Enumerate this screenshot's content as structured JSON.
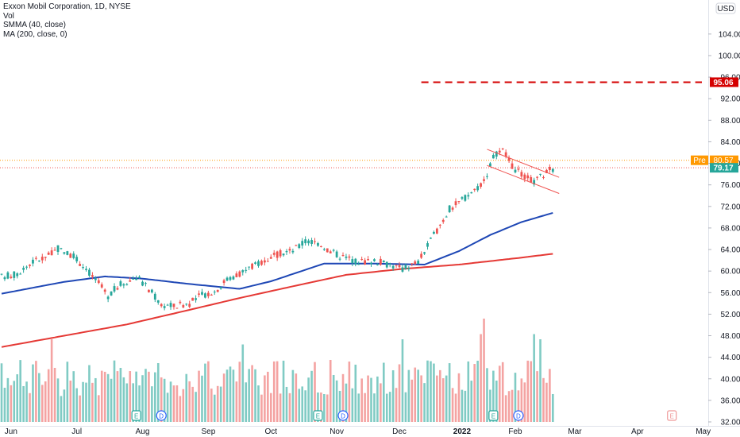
{
  "legend": {
    "title": "Exxon Mobil Corporation, 1D, NYSE",
    "vol": "Vol",
    "smma": "SMMA (40, close)",
    "ma": "MA (200, close, 0)"
  },
  "currency_button": "USD",
  "colors": {
    "up": "#26a69a",
    "down": "#ef5350",
    "vol_up": "#80cbc4",
    "vol_down": "#f4a3a2",
    "smma": "#1e47b5",
    "ma200": "#e53935",
    "target": "#d50000",
    "pre": "#ff9800",
    "event_green": "#26a69a",
    "event_blue": "#2962ff",
    "event_red": "#ef9a9a"
  },
  "chart_data": {
    "type": "candlestick",
    "title": "Exxon Mobil Corporation, 1D, NYSE",
    "yaxis_ticks": [
      "104.00",
      "100.00",
      "96.00",
      "92.00",
      "88.00",
      "84.00",
      "80.00",
      "76.00",
      "72.00",
      "68.00",
      "64.00",
      "60.00",
      "56.00",
      "52.00",
      "48.00",
      "44.00",
      "40.00",
      "36.00",
      "32.00"
    ],
    "xaxis_ticks": [
      "Jun",
      "Jul",
      "Aug",
      "Sep",
      "Oct",
      "Nov",
      "Dec",
      "2022",
      "Feb",
      "Mar",
      "Apr",
      "May"
    ],
    "ylim": [
      32,
      106
    ],
    "price_anchors": [
      [
        0,
        58.9
      ],
      [
        5,
        59.5
      ],
      [
        10,
        61.8
      ],
      [
        14,
        62.6
      ],
      [
        18,
        64.1
      ],
      [
        22,
        63.1
      ],
      [
        26,
        61.1
      ],
      [
        30,
        58.4
      ],
      [
        34,
        55.5
      ],
      [
        38,
        57.6
      ],
      [
        43,
        58.8
      ],
      [
        47,
        56.7
      ],
      [
        51,
        53.8
      ],
      [
        55,
        53.5
      ],
      [
        60,
        54.0
      ],
      [
        64,
        55.6
      ],
      [
        68,
        56.2
      ],
      [
        72,
        58.5
      ],
      [
        78,
        60.2
      ],
      [
        83,
        61.8
      ],
      [
        89,
        63.2
      ],
      [
        93,
        63.8
      ],
      [
        97,
        65.5
      ],
      [
        101,
        65.3
      ],
      [
        105,
        63.6
      ],
      [
        110,
        62.4
      ],
      [
        114,
        61.8
      ],
      [
        119,
        61.9
      ],
      [
        124,
        61.2
      ],
      [
        128,
        60.4
      ],
      [
        133,
        61.7
      ],
      [
        137,
        65.6
      ],
      [
        140,
        68.6
      ],
      [
        143,
        71.5
      ],
      [
        147,
        73.2
      ],
      [
        151,
        75.1
      ],
      [
        154,
        76.8
      ],
      [
        157,
        81.1
      ],
      [
        160,
        82.4
      ],
      [
        163,
        79.4
      ],
      [
        166,
        77.8
      ],
      [
        170,
        76.6
      ],
      [
        173,
        77.9
      ],
      [
        176,
        79.1
      ]
    ],
    "smma_40": [
      [
        0,
        55.8
      ],
      [
        20,
        58.0
      ],
      [
        33,
        59.0
      ],
      [
        45,
        58.6
      ],
      [
        60,
        57.6
      ],
      [
        76,
        56.7
      ],
      [
        86,
        58.1
      ],
      [
        103,
        61.4
      ],
      [
        118,
        61.4
      ],
      [
        135,
        61.2
      ],
      [
        146,
        63.7
      ],
      [
        156,
        66.7
      ],
      [
        166,
        69.1
      ],
      [
        176,
        70.8
      ]
    ],
    "ma_200": [
      [
        0,
        45.9
      ],
      [
        20,
        48.0
      ],
      [
        40,
        50.1
      ],
      [
        60,
        52.8
      ],
      [
        76,
        55.0
      ],
      [
        94,
        57.3
      ],
      [
        110,
        59.3
      ],
      [
        128,
        60.4
      ],
      [
        146,
        61.2
      ],
      [
        166,
        62.5
      ],
      [
        176,
        63.2
      ]
    ],
    "volume_scale": "relative",
    "target_line": 95.06,
    "channel_upper": [
      [
        155,
        82.6
      ],
      [
        178,
        77.4
      ]
    ],
    "channel_lower": [
      [
        155,
        79.6
      ],
      [
        178,
        74.4
      ]
    ],
    "last_price": 79.17,
    "pre_market_price": 80.57,
    "events": [
      {
        "letter": "E",
        "type": "earnings"
      },
      {
        "letter": "D",
        "type": "dividend"
      },
      {
        "letter": "E",
        "type": "earnings"
      },
      {
        "letter": "D",
        "type": "dividend"
      },
      {
        "letter": "E",
        "type": "earnings"
      },
      {
        "letter": "D",
        "type": "dividend"
      },
      {
        "letter": "E",
        "type": "earnings-upcoming"
      }
    ]
  },
  "price_labels": {
    "target": "95.06",
    "pre_tag": "Pre",
    "pre_value": "80.57",
    "last_value": "79.17"
  }
}
